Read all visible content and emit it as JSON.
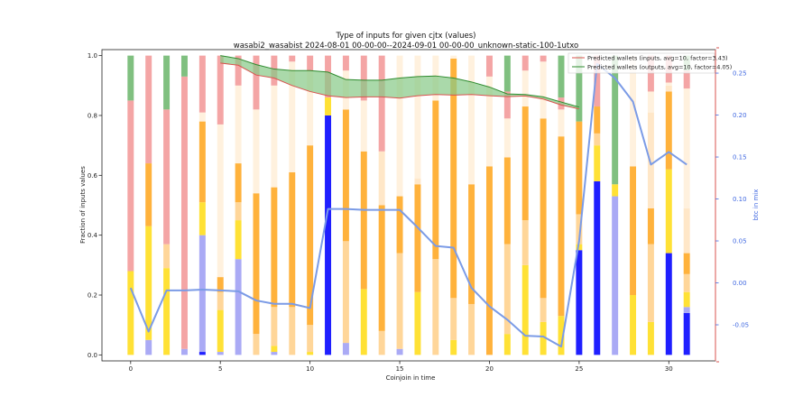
{
  "chart_data": {
    "type": "bar",
    "title": "Type of inputs for given cjtx (values)",
    "subtitle": "wasabi2_wasabist 2024-08-01 00-00-00--2024-09-01 00-00-00_unknown-static-100-1utxo",
    "xlabel": "Coinjoin in time",
    "ylabel": "Fraction of inputs values",
    "y2label": "btc in mix",
    "xlim": [
      -1.6,
      32.6
    ],
    "ylim": [
      -0.02,
      1.02
    ],
    "y2lim": [
      -0.093,
      0.278
    ],
    "x_ticks": [
      0,
      5,
      10,
      15,
      20,
      25,
      30
    ],
    "y_ticks": [
      0.0,
      0.2,
      0.4,
      0.6,
      0.8,
      1.0
    ],
    "y2_ticks": [
      -0.05,
      0.0,
      0.05,
      0.1,
      0.15,
      0.2,
      0.25
    ],
    "colors": {
      "background": "#ffffff",
      "axis": "#222222",
      "y2_axis": "#4169e1",
      "btc_line": "#7b9be6",
      "right_edge": "#d9534f"
    },
    "stack_order_bottom_to_top": [
      "blue",
      "lightblue",
      "yellow",
      "moccasin",
      "orange",
      "bisque",
      "linen",
      "pink",
      "green"
    ],
    "stack_colors": {
      "blue": "#1f1fff",
      "lightblue": "#aaaaf5",
      "yellow": "#ffe135",
      "moccasin": "#ffd699",
      "orange": "#ffb23c",
      "bisque": "#ffe7c8",
      "linen": "#fff1de",
      "pink": "#f4a5a5",
      "green": "#80c080"
    },
    "bars": [
      {
        "x": 0,
        "blue": 0.0,
        "lightblue": 0.0,
        "yellow": 0.28,
        "moccasin": 0.0,
        "orange": 0.0,
        "bisque": 0.0,
        "linen": 0.0,
        "pink": 0.57,
        "green": 0.15
      },
      {
        "x": 1,
        "blue": 0.0,
        "lightblue": 0.05,
        "yellow": 0.38,
        "moccasin": 0.0,
        "orange": 0.21,
        "bisque": 0.0,
        "linen": 0.0,
        "pink": 0.36,
        "green": 0.0
      },
      {
        "x": 2,
        "blue": 0.0,
        "lightblue": 0.0,
        "yellow": 0.29,
        "moccasin": 0.08,
        "orange": 0.0,
        "bisque": 0.0,
        "linen": 0.0,
        "pink": 0.45,
        "green": 0.18
      },
      {
        "x": 3,
        "blue": 0.0,
        "lightblue": 0.02,
        "yellow": 0.0,
        "moccasin": 0.0,
        "orange": 0.0,
        "bisque": 0.0,
        "linen": 0.0,
        "pink": 0.91,
        "green": 0.07
      },
      {
        "x": 4,
        "blue": 0.01,
        "lightblue": 0.39,
        "yellow": 0.11,
        "moccasin": 0.0,
        "orange": 0.27,
        "bisque": 0.0,
        "linen": 0.03,
        "pink": 0.19,
        "green": 0.0
      },
      {
        "x": 5,
        "blue": 0.0,
        "lightblue": 0.01,
        "yellow": 0.14,
        "moccasin": 0.06,
        "orange": 0.05,
        "bisque": 0.0,
        "linen": 0.51,
        "pink": 0.23,
        "green": 0.0
      },
      {
        "x": 6,
        "blue": 0.0,
        "lightblue": 0.32,
        "yellow": 0.13,
        "moccasin": 0.06,
        "orange": 0.13,
        "bisque": 0.0,
        "linen": 0.26,
        "pink": 0.1,
        "green": 0.0
      },
      {
        "x": 7,
        "blue": 0.0,
        "lightblue": 0.0,
        "yellow": 0.0,
        "moccasin": 0.07,
        "orange": 0.47,
        "bisque": 0.0,
        "linen": 0.28,
        "pink": 0.18,
        "green": 0.0
      },
      {
        "x": 8,
        "blue": 0.0,
        "lightblue": 0.01,
        "yellow": 0.02,
        "moccasin": 0.13,
        "orange": 0.4,
        "bisque": 0.0,
        "linen": 0.34,
        "pink": 0.1,
        "green": 0.0
      },
      {
        "x": 9,
        "blue": 0.0,
        "lightblue": 0.0,
        "yellow": 0.0,
        "moccasin": 0.16,
        "orange": 0.45,
        "bisque": 0.0,
        "linen": 0.37,
        "pink": 0.02,
        "green": 0.0
      },
      {
        "x": 10,
        "blue": 0.0,
        "lightblue": 0.0,
        "yellow": 0.01,
        "moccasin": 0.09,
        "orange": 0.6,
        "bisque": 0.0,
        "linen": 0.25,
        "pink": 0.05,
        "green": 0.0
      },
      {
        "x": 11,
        "blue": 0.8,
        "lightblue": 0.0,
        "yellow": 0.06,
        "moccasin": 0.0,
        "orange": 0.0,
        "bisque": 0.0,
        "linen": 0.0,
        "pink": 0.14,
        "green": 0.0
      },
      {
        "x": 12,
        "blue": 0.0,
        "lightblue": 0.04,
        "yellow": 0.0,
        "moccasin": 0.34,
        "orange": 0.44,
        "bisque": 0.0,
        "linen": 0.13,
        "pink": 0.05,
        "green": 0.0
      },
      {
        "x": 13,
        "blue": 0.0,
        "lightblue": 0.0,
        "yellow": 0.22,
        "moccasin": 0.0,
        "orange": 0.46,
        "bisque": 0.0,
        "linen": 0.17,
        "pink": 0.15,
        "green": 0.0
      },
      {
        "x": 14,
        "blue": 0.0,
        "lightblue": 0.0,
        "yellow": 0.0,
        "moccasin": 0.08,
        "orange": 0.42,
        "bisque": 0.18,
        "linen": 0.0,
        "pink": 0.32,
        "green": 0.0
      },
      {
        "x": 15,
        "blue": 0.0,
        "lightblue": 0.02,
        "yellow": 0.0,
        "moccasin": 0.32,
        "orange": 0.19,
        "bisque": 0.0,
        "linen": 0.47,
        "pink": 0.0,
        "green": 0.0
      },
      {
        "x": 16,
        "blue": 0.0,
        "lightblue": 0.0,
        "yellow": 0.21,
        "moccasin": 0.0,
        "orange": 0.36,
        "bisque": 0.02,
        "linen": 0.41,
        "pink": 0.0,
        "green": 0.0
      },
      {
        "x": 17,
        "blue": 0.0,
        "lightblue": 0.0,
        "yellow": 0.0,
        "moccasin": 0.32,
        "orange": 0.53,
        "bisque": 0.0,
        "linen": 0.15,
        "pink": 0.0,
        "green": 0.0
      },
      {
        "x": 18,
        "blue": 0.0,
        "lightblue": 0.0,
        "yellow": 0.05,
        "moccasin": 0.14,
        "orange": 0.8,
        "bisque": 0.0,
        "linen": 0.01,
        "pink": 0.0,
        "green": 0.0
      },
      {
        "x": 19,
        "blue": 0.0,
        "lightblue": 0.0,
        "yellow": 0.0,
        "moccasin": 0.17,
        "orange": 0.4,
        "bisque": 0.0,
        "linen": 0.43,
        "pink": 0.0,
        "green": 0.0
      },
      {
        "x": 20,
        "blue": 0.0,
        "lightblue": 0.0,
        "yellow": 0.0,
        "moccasin": 0.0,
        "orange": 0.63,
        "bisque": 0.0,
        "linen": 0.3,
        "pink": 0.07,
        "green": 0.0
      },
      {
        "x": 21,
        "blue": 0.0,
        "lightblue": 0.0,
        "yellow": 0.07,
        "moccasin": 0.3,
        "orange": 0.29,
        "bisque": 0.0,
        "linen": 0.13,
        "pink": 0.09,
        "green": 0.12
      },
      {
        "x": 22,
        "blue": 0.0,
        "lightblue": 0.0,
        "yellow": 0.3,
        "moccasin": 0.15,
        "orange": 0.38,
        "bisque": 0.0,
        "linen": 0.12,
        "pink": 0.05,
        "green": 0.0
      },
      {
        "x": 23,
        "blue": 0.0,
        "lightblue": 0.0,
        "yellow": 0.11,
        "moccasin": 0.08,
        "orange": 0.6,
        "bisque": 0.0,
        "linen": 0.19,
        "pink": 0.02,
        "green": 0.0
      },
      {
        "x": 24,
        "blue": 0.0,
        "lightblue": 0.0,
        "yellow": 0.13,
        "moccasin": 0.0,
        "orange": 0.6,
        "bisque": 0.0,
        "linen": 0.09,
        "pink": 0.04,
        "green": 0.14
      },
      {
        "x": 25,
        "blue": 0.35,
        "lightblue": 0.0,
        "yellow": 0.02,
        "moccasin": 0.1,
        "orange": 0.31,
        "bisque": 0.0,
        "linen": 0.0,
        "pink": 0.0,
        "green": 0.22
      },
      {
        "x": 26,
        "blue": 0.58,
        "lightblue": 0.0,
        "yellow": 0.12,
        "moccasin": 0.04,
        "orange": 0.09,
        "bisque": 0.0,
        "linen": 0.0,
        "pink": 0.17,
        "green": 0.0
      },
      {
        "x": 27,
        "blue": 0.0,
        "lightblue": 0.53,
        "yellow": 0.04,
        "moccasin": 0.0,
        "orange": 0.0,
        "bisque": 0.0,
        "linen": 0.0,
        "pink": 0.0,
        "green": 0.43
      },
      {
        "x": 28,
        "blue": 0.0,
        "lightblue": 0.0,
        "yellow": 0.2,
        "moccasin": 0.0,
        "orange": 0.43,
        "bisque": 0.0,
        "linen": 0.37,
        "pink": 0.0,
        "green": 0.0
      },
      {
        "x": 29,
        "blue": 0.0,
        "lightblue": 0.0,
        "yellow": 0.11,
        "moccasin": 0.26,
        "orange": 0.12,
        "bisque": 0.32,
        "linen": 0.07,
        "pink": 0.12,
        "green": 0.0
      },
      {
        "x": 30,
        "blue": 0.34,
        "lightblue": 0.0,
        "yellow": 0.28,
        "moccasin": 0.0,
        "orange": 0.26,
        "bisque": 0.02,
        "linen": 0.01,
        "pink": 0.09,
        "green": 0.0
      },
      {
        "x": 31,
        "blue": 0.14,
        "lightblue": 0.02,
        "yellow": 0.05,
        "moccasin": 0.06,
        "orange": 0.07,
        "bisque": 0.15,
        "linen": 0.4,
        "pink": 0.06,
        "green": 0.05
      }
    ],
    "btc_in_mix": {
      "axis": "right",
      "x": [
        0,
        1,
        2,
        3,
        4,
        5,
        6,
        7,
        8,
        9,
        10,
        11,
        12,
        13,
        14,
        15,
        16,
        17,
        18,
        19,
        20,
        21,
        22,
        23,
        24,
        25,
        26,
        27,
        28,
        29,
        30,
        31
      ],
      "y": [
        -0.006,
        -0.058,
        -0.009,
        -0.009,
        -0.008,
        -0.009,
        -0.01,
        -0.021,
        -0.025,
        -0.025,
        -0.03,
        0.088,
        0.088,
        0.087,
        0.087,
        0.087,
        0.066,
        0.044,
        0.042,
        -0.006,
        -0.028,
        -0.044,
        -0.063,
        -0.064,
        -0.076,
        0.05,
        0.261,
        0.244,
        0.216,
        0.141,
        0.156,
        0.141
      ]
    },
    "predicted_inputs": {
      "name": "Predicted wallets (inputs, avg=10, factor=3.43)",
      "color": "#d9534f",
      "x": [
        5,
        6,
        7,
        8,
        9,
        10,
        11,
        12,
        13,
        14,
        15,
        16,
        17,
        18,
        19,
        20,
        21,
        22,
        23,
        24,
        25
      ],
      "y": [
        0.975,
        0.968,
        0.935,
        0.925,
        0.9,
        0.88,
        0.866,
        0.86,
        0.862,
        0.862,
        0.858,
        0.866,
        0.87,
        0.868,
        0.87,
        0.866,
        0.863,
        0.865,
        0.855,
        0.835,
        0.822
      ]
    },
    "predicted_outputs": {
      "name": "Predicted wallets (outputs, avg=10, factor=4.05)",
      "color": "#2e8b2e",
      "fill": "#86c986",
      "x": [
        5,
        6,
        7,
        8,
        9,
        10,
        11,
        12,
        13,
        14,
        15,
        16,
        17,
        18,
        19,
        20,
        21,
        22,
        23,
        24,
        25
      ],
      "y": [
        1.0,
        0.99,
        0.97,
        0.955,
        0.95,
        0.95,
        0.945,
        0.92,
        0.918,
        0.918,
        0.925,
        0.93,
        0.932,
        0.925,
        0.912,
        0.895,
        0.872,
        0.87,
        0.862,
        0.845,
        0.828
      ]
    },
    "legend": {
      "placement": "top-right"
    }
  }
}
